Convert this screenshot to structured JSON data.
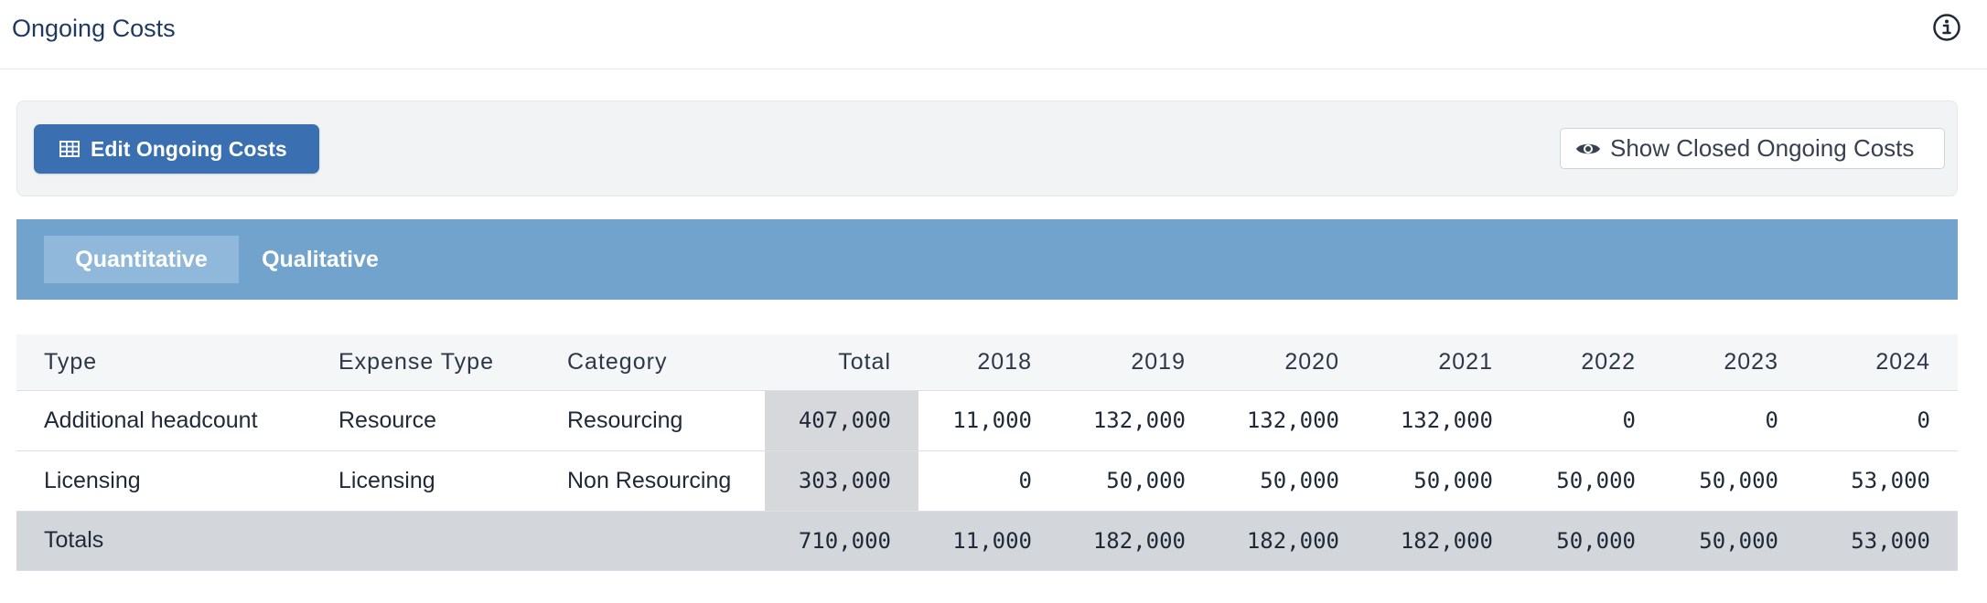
{
  "header": {
    "title": "Ongoing Costs",
    "info_icon": "info-circle-icon"
  },
  "toolbar": {
    "edit_label": "Edit Ongoing Costs",
    "edit_icon": "table-grid-icon",
    "show_closed_label": "Show Closed Ongoing Costs",
    "show_closed_icon": "eye-icon",
    "accent_color": "#3a6fb2"
  },
  "tabs": [
    {
      "label": "Quantitative",
      "active": true
    },
    {
      "label": "Qualitative",
      "active": false
    }
  ],
  "table": {
    "columns": [
      "Type",
      "Expense Type",
      "Category",
      "Total",
      "2018",
      "2019",
      "2020",
      "2021",
      "2022",
      "2023",
      "2024"
    ],
    "rows": [
      {
        "type": "Additional headcount",
        "expense_type": "Resource",
        "category": "Resourcing",
        "total": "407,000",
        "years": [
          "11,000",
          "132,000",
          "132,000",
          "132,000",
          "0",
          "0",
          "0"
        ]
      },
      {
        "type": "Licensing",
        "expense_type": "Licensing",
        "category": "Non Resourcing",
        "total": "303,000",
        "years": [
          "0",
          "50,000",
          "50,000",
          "50,000",
          "50,000",
          "50,000",
          "53,000"
        ]
      }
    ],
    "totals": {
      "label": "Totals",
      "total": "710,000",
      "years": [
        "11,000",
        "182,000",
        "182,000",
        "182,000",
        "50,000",
        "50,000",
        "53,000"
      ]
    }
  }
}
